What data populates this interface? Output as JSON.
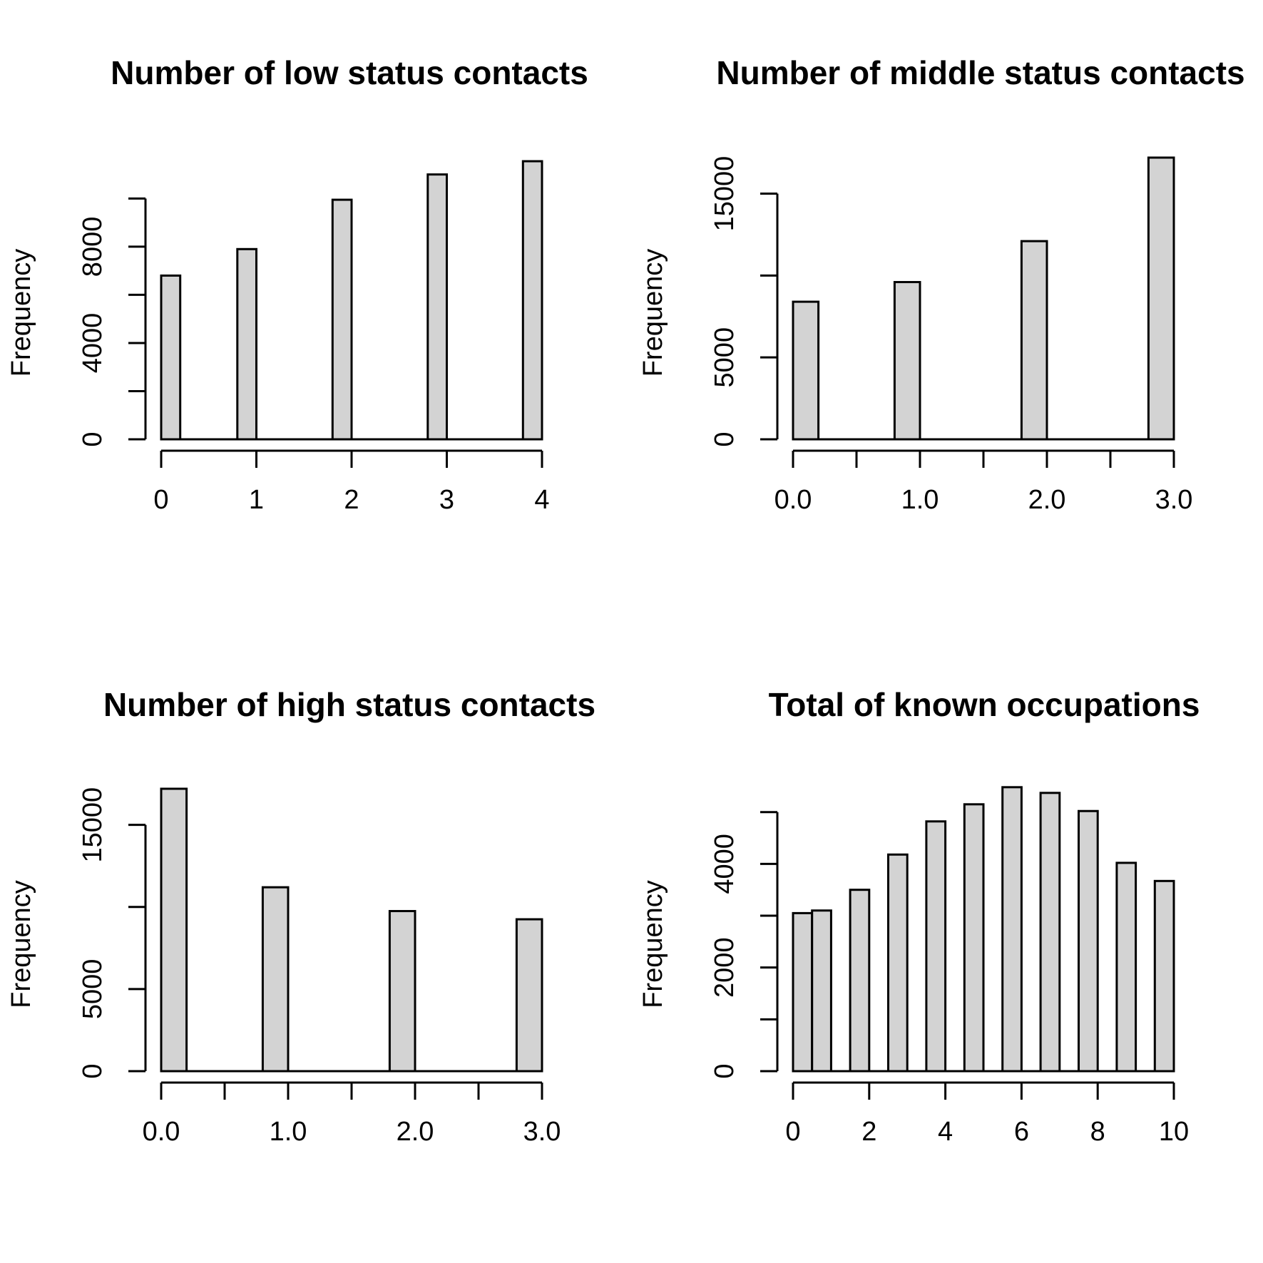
{
  "chart_data": [
    {
      "type": "bar",
      "title": "Number of low status contacts",
      "xlabel": "",
      "ylabel": "Frequency",
      "x_ticks": [
        "0",
        "1",
        "2",
        "3",
        "4"
      ],
      "x_tick_values": [
        0,
        1,
        2,
        3,
        4
      ],
      "y_ticks": [
        "0",
        "4000",
        "8000"
      ],
      "y_tick_values": [
        0,
        4000,
        8000
      ],
      "y_minor_ticks": [
        0,
        2000,
        4000,
        6000,
        8000,
        10000
      ],
      "xlim": [
        0,
        4
      ],
      "ylim": [
        0,
        11700
      ],
      "bins": [
        {
          "start": 0.0,
          "end": 0.2,
          "value": 6800
        },
        {
          "start": 0.8,
          "end": 1.0,
          "value": 7900
        },
        {
          "start": 1.8,
          "end": 2.0,
          "value": 9950
        },
        {
          "start": 2.8,
          "end": 3.0,
          "value": 11000
        },
        {
          "start": 3.8,
          "end": 4.0,
          "value": 11550
        }
      ],
      "grid": false
    },
    {
      "type": "bar",
      "title": "Number of middle status contacts",
      "xlabel": "",
      "ylabel": "Frequency",
      "x_ticks": [
        "0.0",
        "",
        "1.0",
        "",
        "2.0",
        "",
        "3.0"
      ],
      "x_tick_values": [
        0,
        0.5,
        1,
        1.5,
        2,
        2.5,
        3
      ],
      "y_ticks": [
        "0",
        "5000",
        "15000"
      ],
      "y_tick_values": [
        0,
        5000,
        15000
      ],
      "y_minor_ticks": [
        0,
        5000,
        10000,
        15000
      ],
      "xlim": [
        0,
        3
      ],
      "ylim": [
        0,
        17200
      ],
      "bins": [
        {
          "start": 0.0,
          "end": 0.2,
          "value": 8400
        },
        {
          "start": 0.8,
          "end": 1.0,
          "value": 9600
        },
        {
          "start": 1.8,
          "end": 2.0,
          "value": 12100
        },
        {
          "start": 2.8,
          "end": 3.0,
          "value": 17200
        }
      ],
      "grid": false
    },
    {
      "type": "bar",
      "title": "Number of high status contacts",
      "xlabel": "",
      "ylabel": "Frequency",
      "x_ticks": [
        "0.0",
        "",
        "1.0",
        "",
        "2.0",
        "",
        "3.0"
      ],
      "x_tick_values": [
        0,
        0.5,
        1,
        1.5,
        2,
        2.5,
        3
      ],
      "y_ticks": [
        "0",
        "5000",
        "15000"
      ],
      "y_tick_values": [
        0,
        5000,
        15000
      ],
      "y_minor_ticks": [
        0,
        5000,
        10000,
        15000
      ],
      "xlim": [
        0,
        3
      ],
      "ylim": [
        0,
        17200
      ],
      "bins": [
        {
          "start": 0.0,
          "end": 0.2,
          "value": 17200
        },
        {
          "start": 0.8,
          "end": 1.0,
          "value": 11200
        },
        {
          "start": 1.8,
          "end": 2.0,
          "value": 9750
        },
        {
          "start": 2.8,
          "end": 3.0,
          "value": 9250
        }
      ],
      "grid": false
    },
    {
      "type": "bar",
      "title": "Total of known occupations",
      "xlabel": "",
      "ylabel": "Frequency",
      "x_ticks": [
        "0",
        "2",
        "4",
        "6",
        "8",
        "10"
      ],
      "x_tick_values": [
        0,
        2,
        4,
        6,
        8,
        10
      ],
      "y_ticks": [
        "0",
        "2000",
        "4000"
      ],
      "y_tick_values": [
        0,
        2000,
        4000
      ],
      "y_minor_ticks": [
        0,
        1000,
        2000,
        3000,
        4000,
        5000
      ],
      "xlim": [
        0,
        10
      ],
      "ylim": [
        0,
        5450
      ],
      "bins": [
        {
          "start": 0.0,
          "end": 0.5,
          "value": 3050
        },
        {
          "start": 0.5,
          "end": 1.0,
          "value": 3100
        },
        {
          "start": 1.5,
          "end": 2.0,
          "value": 3500
        },
        {
          "start": 2.5,
          "end": 3.0,
          "value": 4180
        },
        {
          "start": 3.5,
          "end": 4.0,
          "value": 4820
        },
        {
          "start": 4.5,
          "end": 5.0,
          "value": 5150
        },
        {
          "start": 5.5,
          "end": 6.0,
          "value": 5480
        },
        {
          "start": 6.5,
          "end": 7.0,
          "value": 5370
        },
        {
          "start": 7.5,
          "end": 8.0,
          "value": 5020
        },
        {
          "start": 8.5,
          "end": 9.0,
          "value": 4020
        },
        {
          "start": 9.5,
          "end": 10.0,
          "value": 3670
        }
      ],
      "grid": false
    }
  ]
}
